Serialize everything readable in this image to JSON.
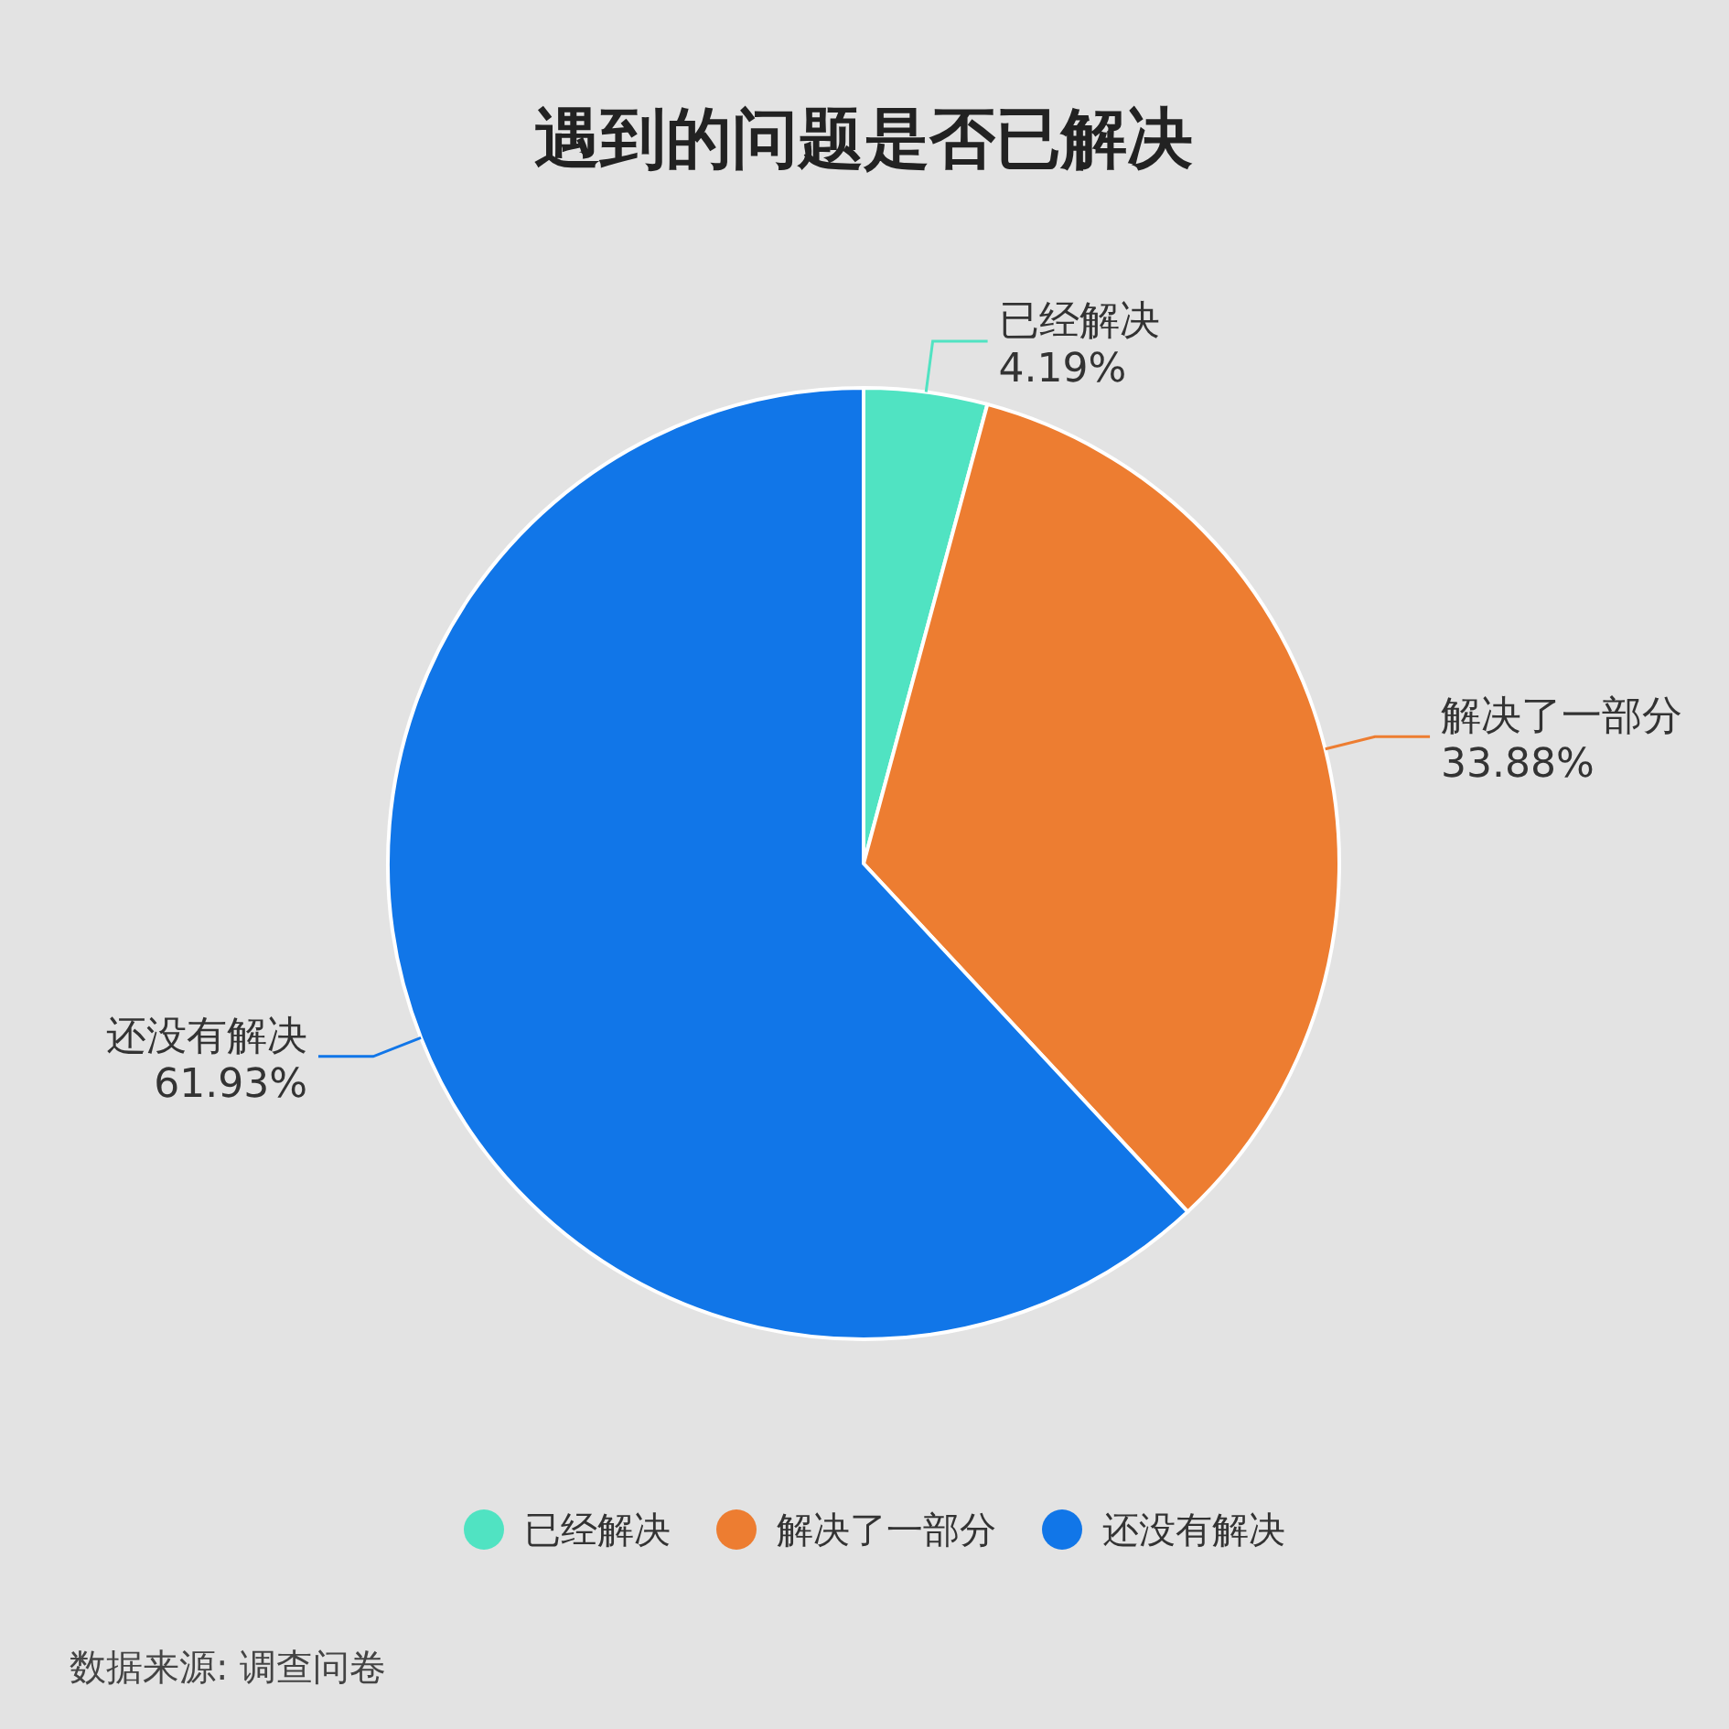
{
  "chart_data": {
    "type": "pie",
    "title": "遇到的问题是否已解决",
    "categories": [
      "已经解决",
      "解决了一部分",
      "还没有解决"
    ],
    "values": [
      4.19,
      33.88,
      61.93
    ],
    "colors": [
      "#50e3c2",
      "#ed7d31",
      "#1176e8"
    ],
    "value_labels": [
      "4.19%",
      "33.88%",
      "61.93%"
    ],
    "legend": "bottom",
    "annotations": [
      "数据来源: 调查问卷"
    ]
  }
}
